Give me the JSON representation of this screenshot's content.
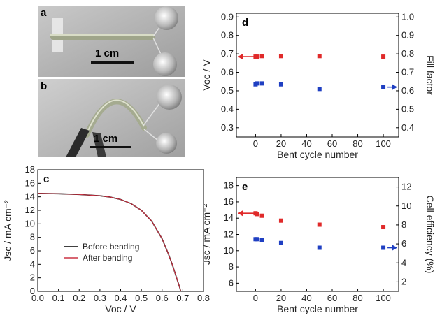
{
  "panels": {
    "a": {
      "letter": "a",
      "scale_bar_label": "1 cm"
    },
    "b": {
      "letter": "b",
      "scale_bar_label": "1 cm"
    }
  },
  "chart_data": [
    {
      "panel": "c",
      "type": "line",
      "xlabel": "Voc / V",
      "ylabel": "Jsc / mA cm⁻²",
      "xlim": [
        0.0,
        0.8
      ],
      "ylim": [
        0,
        18
      ],
      "xticks": [
        0.0,
        0.1,
        0.2,
        0.3,
        0.4,
        0.5,
        0.6,
        0.7,
        0.8
      ],
      "xtick_labels": [
        "0.0",
        "0.1",
        "0.2",
        "0.3",
        "0.4",
        "0.5",
        "0.6",
        "0.7",
        "0.8"
      ],
      "yticks": [
        0,
        2,
        4,
        6,
        8,
        10,
        12,
        14,
        16,
        18
      ],
      "legend_position": "center",
      "series": [
        {
          "name": "Before bending",
          "color": "#000000",
          "x": [
            0.0,
            0.1,
            0.2,
            0.3,
            0.35,
            0.4,
            0.45,
            0.5,
            0.55,
            0.6,
            0.63,
            0.65,
            0.67,
            0.685,
            0.69
          ],
          "y": [
            14.5,
            14.45,
            14.35,
            14.15,
            13.95,
            13.6,
            13.0,
            12.0,
            10.4,
            7.8,
            5.6,
            3.9,
            2.0,
            0.6,
            0.0
          ]
        },
        {
          "name": "After bending",
          "color": "#cc3344",
          "x": [
            0.0,
            0.1,
            0.2,
            0.3,
            0.35,
            0.4,
            0.45,
            0.5,
            0.55,
            0.6,
            0.63,
            0.65,
            0.67,
            0.685,
            0.69
          ],
          "y": [
            14.5,
            14.45,
            14.35,
            14.15,
            13.95,
            13.6,
            13.0,
            12.0,
            10.4,
            7.8,
            5.6,
            3.9,
            2.0,
            0.6,
            0.0
          ]
        }
      ]
    },
    {
      "panel": "d",
      "type": "scatter",
      "xlabel": "Bent cycle number",
      "ylabel": "Voc / V",
      "y2label": "Fill factor",
      "xlim": [
        -15,
        112
      ],
      "ylim": [
        0.25,
        0.92
      ],
      "y2lim": [
        0.35,
        1.02
      ],
      "xticks": [
        0,
        20,
        40,
        60,
        80,
        100
      ],
      "yticks": [
        0.3,
        0.4,
        0.5,
        0.6,
        0.7,
        0.8,
        0.9
      ],
      "ytick_labels": [
        "0.3",
        "0.4",
        "0.5",
        "0.6",
        "0.7",
        "0.8",
        "0.9"
      ],
      "y2ticks": [
        0.4,
        0.5,
        0.6,
        0.7,
        0.8,
        0.9,
        1.0
      ],
      "y2tick_labels": [
        "0.4",
        "0.5",
        "0.6",
        "0.7",
        "0.8",
        "0.9",
        "1.0"
      ],
      "series": [
        {
          "axis": "left",
          "color": "#e02a2a",
          "arrow": "left",
          "x": [
            0,
            1,
            5,
            20,
            50,
            100
          ],
          "y": [
            0.685,
            0.685,
            0.688,
            0.688,
            0.688,
            0.685
          ]
        },
        {
          "axis": "right",
          "color": "#1f3fc2",
          "arrow": "right",
          "x": [
            0,
            1,
            5,
            20,
            50,
            100
          ],
          "y": [
            0.635,
            0.64,
            0.64,
            0.635,
            0.61,
            0.62
          ]
        }
      ]
    },
    {
      "panel": "e",
      "type": "scatter",
      "xlabel": "Bent cycle number",
      "ylabel": "Jsc / mA cm⁻²",
      "y2label": "Cell efficiency (%)",
      "xlim": [
        -15,
        112
      ],
      "ylim": [
        5.0,
        19.0
      ],
      "y2lim": [
        1.0,
        13.0
      ],
      "xticks": [
        0,
        20,
        40,
        60,
        80,
        100
      ],
      "yticks": [
        6,
        8,
        10,
        12,
        14,
        16,
        18
      ],
      "y2ticks": [
        2,
        4,
        6,
        8,
        10,
        12
      ],
      "series": [
        {
          "axis": "left",
          "color": "#e02a2a",
          "arrow": "left",
          "x": [
            0,
            1,
            5,
            20,
            50,
            100
          ],
          "y": [
            14.6,
            14.5,
            14.3,
            13.7,
            13.2,
            12.9
          ]
        },
        {
          "axis": "right",
          "color": "#1f3fc2",
          "arrow": "right",
          "x": [
            0,
            1,
            5,
            20,
            50,
            100
          ],
          "y": [
            6.5,
            6.5,
            6.4,
            6.1,
            5.6,
            5.6
          ]
        }
      ]
    }
  ]
}
